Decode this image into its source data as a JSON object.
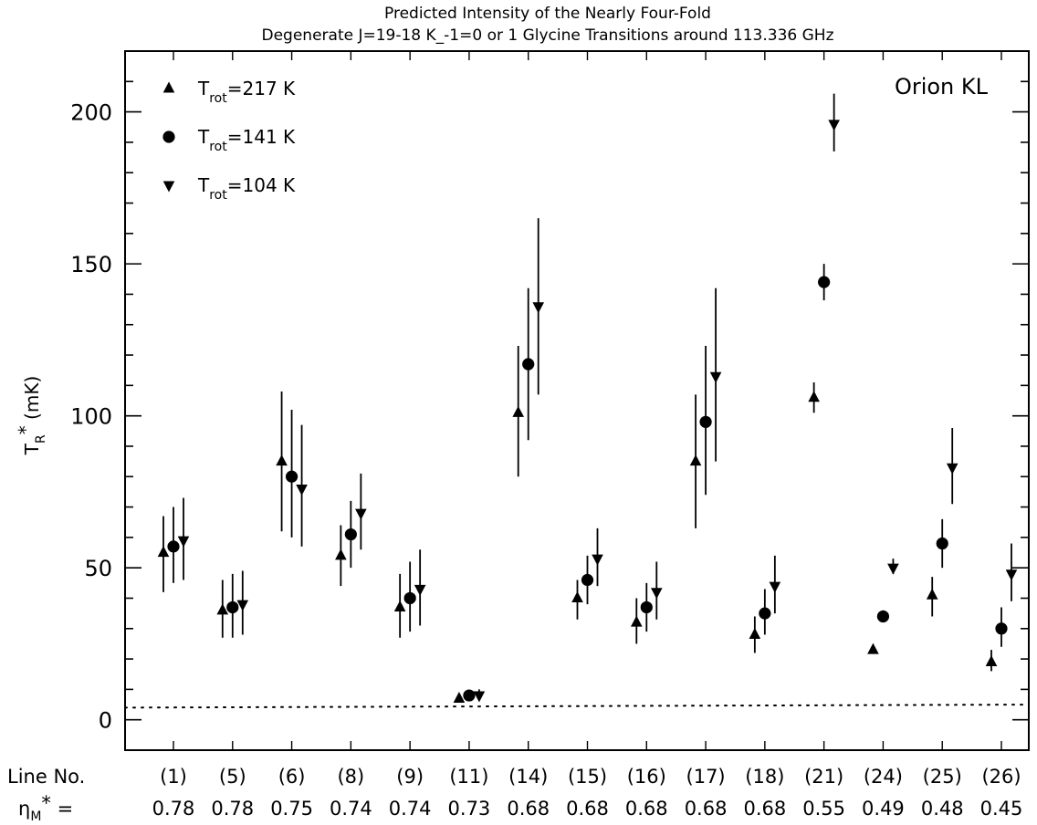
{
  "chart_data": {
    "type": "scatter",
    "title_lines": [
      "Predicted Intensity of the Nearly Four-Fold",
      "Degenerate J=19-18 K_-1=0 or 1 Glycine Transitions around 113.336 GHz"
    ],
    "annotation": "Orion KL",
    "ylabel": "T_R* (mK)",
    "ylim": [
      -10,
      220
    ],
    "yticks": [
      0,
      50,
      100,
      150,
      200
    ],
    "grid": false,
    "legend_position": "top-left",
    "reference_line": {
      "style": "dotted",
      "y": [
        4,
        5
      ]
    },
    "row_labels": {
      "line_no": "Line No.",
      "eta": "η_M* ="
    },
    "categories": [
      "(1)",
      "(5)",
      "(6)",
      "(8)",
      "(9)",
      "(11)",
      "(14)",
      "(15)",
      "(16)",
      "(17)",
      "(18)",
      "(21)",
      "(24)",
      "(25)",
      "(26)"
    ],
    "eta_values": [
      "0.78",
      "0.78",
      "0.75",
      "0.74",
      "0.74",
      "0.73",
      "0.68",
      "0.68",
      "0.68",
      "0.68",
      "0.68",
      "0.55",
      "0.49",
      "0.48",
      "0.45"
    ],
    "series": [
      {
        "name": "T_rot=217 K",
        "marker": "triangle-up",
        "values": [
          55,
          36,
          85,
          54,
          37,
          7,
          101,
          40,
          32,
          85,
          28,
          106,
          23,
          41,
          19
        ],
        "err_low": [
          42,
          27,
          62,
          44,
          27,
          6,
          80,
          33,
          25,
          63,
          22,
          101,
          22,
          34,
          16
        ],
        "err_high": [
          67,
          46,
          108,
          64,
          48,
          8,
          123,
          46,
          40,
          107,
          34,
          111,
          24,
          47,
          23
        ]
      },
      {
        "name": "T_rot=141 K",
        "marker": "circle",
        "values": [
          57,
          37,
          80,
          61,
          40,
          8,
          117,
          46,
          37,
          98,
          35,
          144,
          34,
          58,
          30
        ],
        "err_low": [
          45,
          27,
          60,
          50,
          29,
          7,
          92,
          38,
          29,
          74,
          28,
          138,
          32,
          50,
          24
        ],
        "err_high": [
          70,
          48,
          102,
          72,
          52,
          9,
          142,
          54,
          45,
          123,
          43,
          150,
          36,
          66,
          37
        ]
      },
      {
        "name": "T_rot=104 K",
        "marker": "triangle-down",
        "values": [
          59,
          38,
          76,
          68,
          43,
          8,
          136,
          53,
          42,
          113,
          44,
          196,
          50,
          83,
          48
        ],
        "err_low": [
          46,
          28,
          57,
          56,
          31,
          7,
          107,
          44,
          33,
          85,
          35,
          187,
          48,
          71,
          39
        ],
        "err_high": [
          73,
          49,
          97,
          81,
          56,
          10,
          165,
          63,
          52,
          142,
          54,
          206,
          53,
          96,
          58
        ]
      }
    ]
  }
}
